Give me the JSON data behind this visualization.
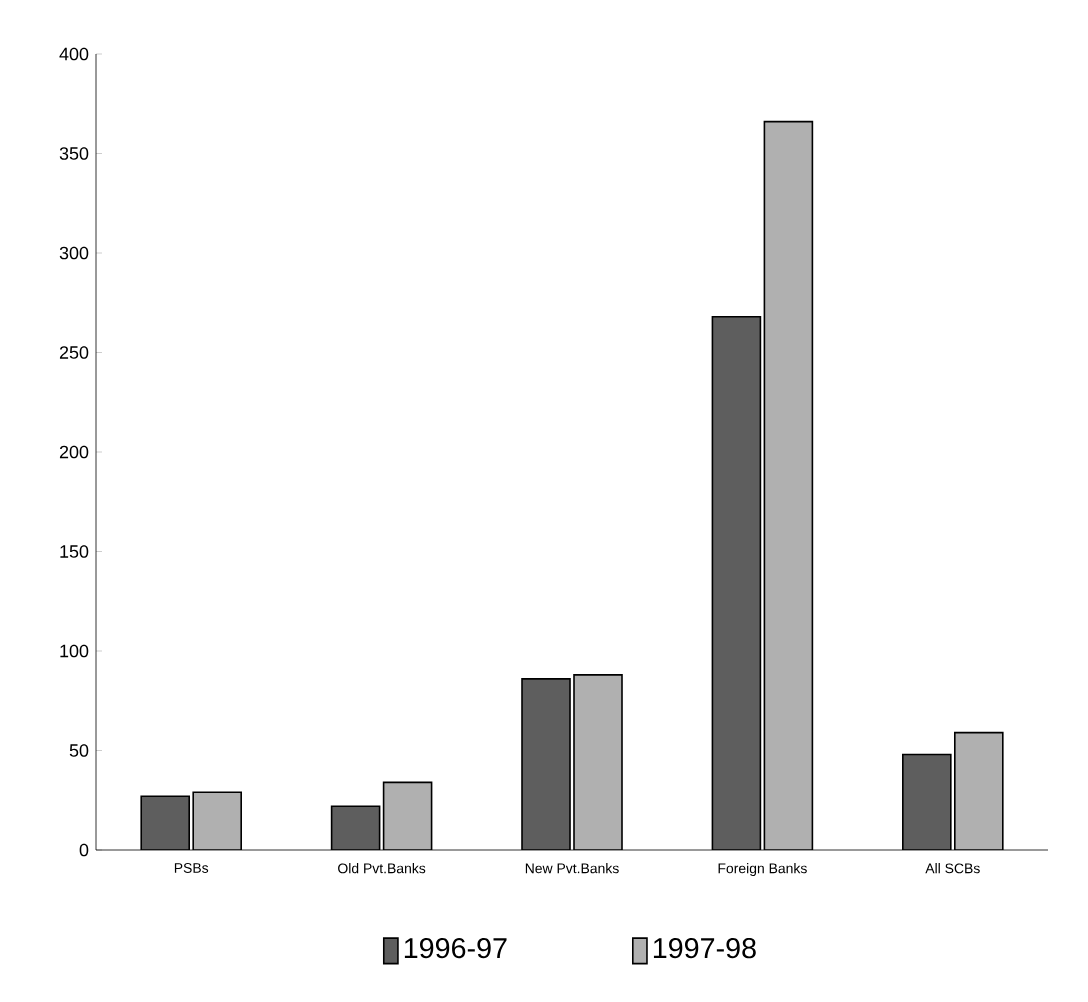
{
  "chart_data": {
    "type": "bar",
    "categories": [
      "PSBs",
      "Old Pvt.Banks",
      "New Pvt.Banks",
      "Foreign Banks",
      "All SCBs"
    ],
    "series": [
      {
        "name": "1996-97",
        "color": "#5e5e5e",
        "values": [
          27,
          22,
          86,
          268,
          48
        ]
      },
      {
        "name": "1997-98",
        "color": "#b0b0b0",
        "values": [
          29,
          34,
          88,
          366,
          59
        ]
      }
    ],
    "ylim": [
      0,
      400
    ],
    "yticks": [
      0,
      50,
      100,
      150,
      200,
      250,
      300,
      350,
      400
    ],
    "grid": false,
    "legend": "bottom"
  }
}
